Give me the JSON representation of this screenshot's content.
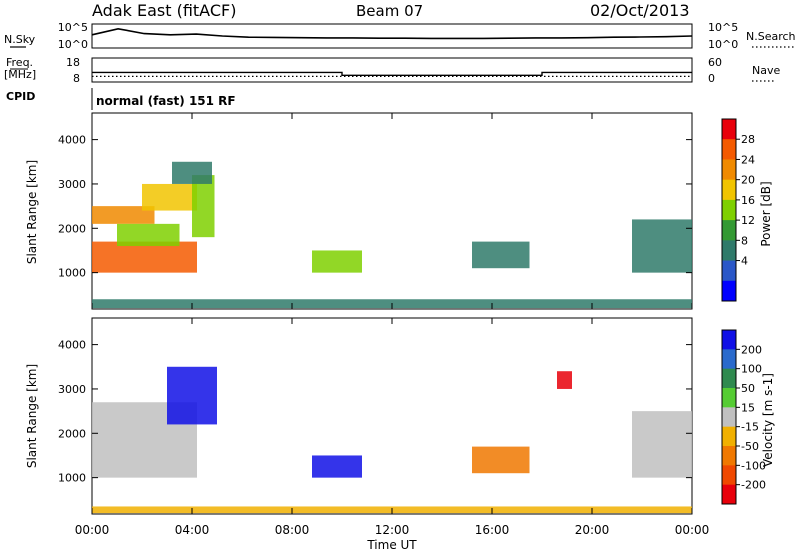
{
  "header": {
    "station": "Adak East (fitACF)",
    "beam": "Beam 07",
    "date": "02/Oct/2013"
  },
  "noise_panel": {
    "left_label": "N.Sky",
    "right_label": "N.Search",
    "left_ticks": [
      "10^5",
      "10^0"
    ],
    "right_ticks": [
      "10^5",
      "10^0"
    ],
    "series": [
      {
        "name": "N.Sky",
        "style": "solid",
        "y": [
          0.55,
          0.8,
          0.6,
          0.55,
          0.58,
          0.5,
          0.45,
          0.44,
          0.43,
          0.42,
          0.42,
          0.41,
          0.41,
          0.4,
          0.4,
          0.4,
          0.41,
          0.42,
          0.42,
          0.43,
          0.45,
          0.46,
          0.47,
          0.5
        ]
      }
    ]
  },
  "freq_panel": {
    "left_label_1": "Freq.",
    "left_label_2": "[MHz]",
    "right_label": "Nave",
    "left_ticks": [
      "18",
      "8"
    ],
    "right_ticks": [
      "60",
      "0"
    ],
    "frequency_mhz": {
      "x_hours": [
        0,
        10,
        10,
        18,
        18,
        24
      ],
      "values": [
        12.0,
        12.0,
        10.8,
        10.8,
        12.0,
        12.0
      ]
    },
    "nave": {
      "value": 14
    }
  },
  "cpid": {
    "label": "CPID",
    "program": "normal (fast) 151 RF"
  },
  "power_panel": {
    "ylabel": "Slant Range [km]",
    "yticks": [
      "4000",
      "3000",
      "2000",
      "1000"
    ],
    "colorbar": {
      "label": "Power [dB]",
      "ticks": [
        "28",
        "24",
        "20",
        "16",
        "12",
        "8",
        "4"
      ],
      "colors": [
        "#e8000b",
        "#f45a00",
        "#f08a00",
        "#f1c400",
        "#7fd000",
        "#339933",
        "#2f7a6a",
        "#2a57c8",
        "#0000ff"
      ]
    }
  },
  "velocity_panel": {
    "ylabel": "Slant Range [km]",
    "yticks": [
      "4000",
      "3000",
      "2000",
      "1000"
    ],
    "colorbar": {
      "label": "Velocity [m s-1]",
      "ticks": [
        "200",
        "100",
        "50",
        "15",
        "-15",
        "-50",
        "-100",
        "-200"
      ],
      "colors": [
        "#1010e6",
        "#2a6acc",
        "#2f8a4f",
        "#55cc33",
        "#c0c0c0",
        "#f1b000",
        "#f07800",
        "#f04800",
        "#e8000b"
      ]
    }
  },
  "time_axis": {
    "ticks": [
      "00:00",
      "04:00",
      "08:00",
      "12:00",
      "16:00",
      "20:00",
      "00:00"
    ],
    "label": "Time UT"
  },
  "chart_data": {
    "type": "heatmap",
    "x_unit": "hours UT",
    "y_unit": "km",
    "x_range": [
      0,
      24
    ],
    "y_range": [
      180,
      4600
    ],
    "power_patches": [
      {
        "x": [
          0.0,
          4.2
        ],
        "y": [
          1000,
          1700
        ],
        "value_db": 26
      },
      {
        "x": [
          0.0,
          2.5
        ],
        "y": [
          2100,
          2500
        ],
        "value_db": 24
      },
      {
        "x": [
          2.0,
          4.2
        ],
        "y": [
          2400,
          3000
        ],
        "value_db": 20
      },
      {
        "x": [
          1.0,
          3.5
        ],
        "y": [
          1600,
          2100
        ],
        "value_db": 14
      },
      {
        "x": [
          4.0,
          4.9
        ],
        "y": [
          1800,
          3200
        ],
        "value_db": 14
      },
      {
        "x": [
          3.2,
          4.8
        ],
        "y": [
          3000,
          3500
        ],
        "value_db": 8
      },
      {
        "x": [
          8.8,
          10.8
        ],
        "y": [
          1000,
          1500
        ],
        "value_db": 14
      },
      {
        "x": [
          15.2,
          17.5
        ],
        "y": [
          1100,
          1700
        ],
        "value_db": 6
      },
      {
        "x": [
          21.6,
          24.0
        ],
        "y": [
          1000,
          2200
        ],
        "value_db": 8
      },
      {
        "x": [
          0.0,
          24.0
        ],
        "y": [
          200,
          400
        ],
        "value_db": 6
      }
    ],
    "velocity_patches": [
      {
        "x": [
          0.0,
          4.2
        ],
        "y": [
          1000,
          2700
        ],
        "value_ms": 0
      },
      {
        "x": [
          3.0,
          5.0
        ],
        "y": [
          2200,
          3500
        ],
        "value_ms": 250
      },
      {
        "x": [
          8.8,
          10.8
        ],
        "y": [
          1000,
          1500
        ],
        "value_ms": 220
      },
      {
        "x": [
          15.2,
          17.5
        ],
        "y": [
          1100,
          1700
        ],
        "value_ms": -80
      },
      {
        "x": [
          21.6,
          24.0
        ],
        "y": [
          1000,
          2500
        ],
        "value_ms": 0
      },
      {
        "x": [
          0.0,
          24.0
        ],
        "y": [
          200,
          350
        ],
        "value_ms": -20
      },
      {
        "x": [
          18.6,
          19.2
        ],
        "y": [
          3000,
          3400
        ],
        "value_ms": -220
      }
    ]
  }
}
